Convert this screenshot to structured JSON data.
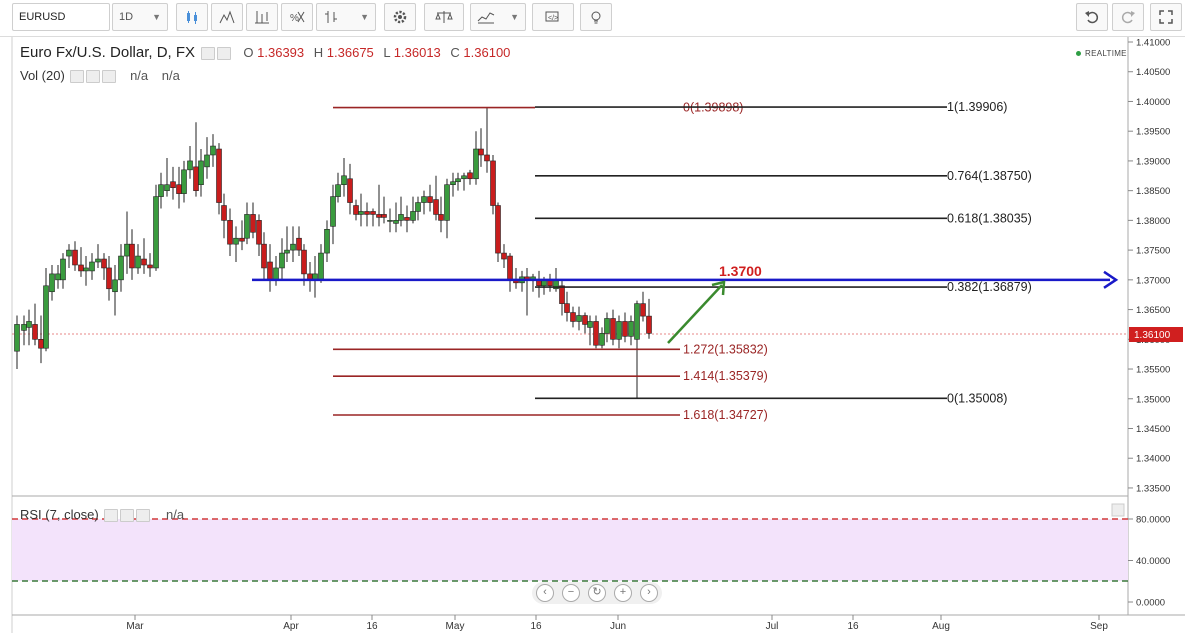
{
  "toolbar": {
    "symbol": "EURUSD",
    "interval": "1D",
    "buttons": [
      "candles-icon",
      "indicators-icon",
      "compare-icon",
      "templates-icon",
      "bar-style-icon",
      "settings-icon",
      "scale-icon",
      "studies-icon",
      "alert-icon",
      "idea-icon",
      "undo-icon",
      "redo-icon",
      "fullscreen-icon"
    ]
  },
  "legend": {
    "title": "Euro Fx/U.S. Dollar, D, FX",
    "open_label": "O",
    "open": "1.36393",
    "high_label": "H",
    "high": "1.36675",
    "low_label": "L",
    "low": "1.36013",
    "close_label": "C",
    "close": "1.36100"
  },
  "volume": {
    "label": "Vol (20)",
    "v1": "n/a",
    "v2": "n/a"
  },
  "realtime": "REALTIME",
  "rsi": {
    "label": "RSI (7, close)",
    "value": "n/a"
  },
  "colors": {
    "up": "#3a9b3e",
    "down": "#c91d1d",
    "blue_line": "#1919c8",
    "arrow": "#3a8a2e",
    "red_fib": "#9a2525",
    "black_fib": "#222222"
  },
  "chart_data": {
    "type": "candlestick",
    "symbol": "EURUSD",
    "y_axis": {
      "ticks": [
        "1.41000",
        "1.40500",
        "1.40000",
        "1.39500",
        "1.39000",
        "1.38500",
        "1.38000",
        "1.37500",
        "1.37000",
        "1.36500",
        "1.36000",
        "1.35500",
        "1.35000",
        "1.34500",
        "1.34000",
        "1.33500"
      ],
      "last_price": "1.36100"
    },
    "x_axis": {
      "ticks": [
        "Mar",
        "Apr",
        "16",
        "May",
        "16",
        "Jun",
        "Jul",
        "16",
        "Aug",
        "Sep"
      ]
    },
    "candles": [
      {
        "x": 17,
        "o": 1.358,
        "h": 1.364,
        "l": 1.355,
        "c": 1.3625
      },
      {
        "x": 24,
        "o": 1.3615,
        "h": 1.364,
        "l": 1.359,
        "c": 1.3625
      },
      {
        "x": 29,
        "o": 1.362,
        "h": 1.365,
        "l": 1.359,
        "c": 1.363
      },
      {
        "x": 35,
        "o": 1.3625,
        "h": 1.366,
        "l": 1.359,
        "c": 1.36
      },
      {
        "x": 41,
        "o": 1.36,
        "h": 1.364,
        "l": 1.356,
        "c": 1.3585
      },
      {
        "x": 46,
        "o": 1.3585,
        "h": 1.372,
        "l": 1.358,
        "c": 1.369
      },
      {
        "x": 52,
        "o": 1.368,
        "h": 1.3725,
        "l": 1.3665,
        "c": 1.371
      },
      {
        "x": 58,
        "o": 1.37,
        "h": 1.3725,
        "l": 1.3685,
        "c": 1.371
      },
      {
        "x": 63,
        "o": 1.37,
        "h": 1.3745,
        "l": 1.3685,
        "c": 1.3735
      },
      {
        "x": 69,
        "o": 1.374,
        "h": 1.376,
        "l": 1.372,
        "c": 1.375
      },
      {
        "x": 75,
        "o": 1.375,
        "h": 1.3765,
        "l": 1.3715,
        "c": 1.3725
      },
      {
        "x": 81,
        "o": 1.3725,
        "h": 1.3755,
        "l": 1.3705,
        "c": 1.3715
      },
      {
        "x": 86,
        "o": 1.3715,
        "h": 1.374,
        "l": 1.369,
        "c": 1.372
      },
      {
        "x": 92,
        "o": 1.3715,
        "h": 1.3745,
        "l": 1.37,
        "c": 1.373
      },
      {
        "x": 98,
        "o": 1.373,
        "h": 1.376,
        "l": 1.372,
        "c": 1.3735
      },
      {
        "x": 104,
        "o": 1.3735,
        "h": 1.3745,
        "l": 1.37,
        "c": 1.372
      },
      {
        "x": 109,
        "o": 1.372,
        "h": 1.374,
        "l": 1.3665,
        "c": 1.3685
      },
      {
        "x": 115,
        "o": 1.368,
        "h": 1.3725,
        "l": 1.364,
        "c": 1.37
      },
      {
        "x": 121,
        "o": 1.37,
        "h": 1.376,
        "l": 1.368,
        "c": 1.374
      },
      {
        "x": 127,
        "o": 1.374,
        "h": 1.3815,
        "l": 1.371,
        "c": 1.376
      },
      {
        "x": 132,
        "o": 1.376,
        "h": 1.3785,
        "l": 1.37,
        "c": 1.372
      },
      {
        "x": 138,
        "o": 1.372,
        "h": 1.376,
        "l": 1.371,
        "c": 1.374
      },
      {
        "x": 144,
        "o": 1.3735,
        "h": 1.377,
        "l": 1.371,
        "c": 1.3725
      },
      {
        "x": 150,
        "o": 1.3725,
        "h": 1.3745,
        "l": 1.3705,
        "c": 1.372
      },
      {
        "x": 156,
        "o": 1.372,
        "h": 1.386,
        "l": 1.3715,
        "c": 1.384
      },
      {
        "x": 161,
        "o": 1.384,
        "h": 1.388,
        "l": 1.382,
        "c": 1.386
      },
      {
        "x": 167,
        "o": 1.385,
        "h": 1.3905,
        "l": 1.384,
        "c": 1.386
      },
      {
        "x": 173,
        "o": 1.3865,
        "h": 1.389,
        "l": 1.3835,
        "c": 1.3855
      },
      {
        "x": 179,
        "o": 1.386,
        "h": 1.389,
        "l": 1.382,
        "c": 1.3845
      },
      {
        "x": 184,
        "o": 1.3845,
        "h": 1.39,
        "l": 1.383,
        "c": 1.3885
      },
      {
        "x": 190,
        "o": 1.3885,
        "h": 1.3925,
        "l": 1.387,
        "c": 1.39
      },
      {
        "x": 196,
        "o": 1.389,
        "h": 1.3965,
        "l": 1.384,
        "c": 1.385
      },
      {
        "x": 201,
        "o": 1.386,
        "h": 1.392,
        "l": 1.384,
        "c": 1.39
      },
      {
        "x": 207,
        "o": 1.389,
        "h": 1.394,
        "l": 1.387,
        "c": 1.391
      },
      {
        "x": 213,
        "o": 1.391,
        "h": 1.3945,
        "l": 1.389,
        "c": 1.3925
      },
      {
        "x": 219,
        "o": 1.392,
        "h": 1.393,
        "l": 1.381,
        "c": 1.383
      },
      {
        "x": 224,
        "o": 1.3825,
        "h": 1.3845,
        "l": 1.377,
        "c": 1.38
      },
      {
        "x": 230,
        "o": 1.38,
        "h": 1.382,
        "l": 1.374,
        "c": 1.376
      },
      {
        "x": 236,
        "o": 1.376,
        "h": 1.379,
        "l": 1.373,
        "c": 1.377
      },
      {
        "x": 242,
        "o": 1.377,
        "h": 1.38,
        "l": 1.375,
        "c": 1.3765
      },
      {
        "x": 247,
        "o": 1.377,
        "h": 1.383,
        "l": 1.376,
        "c": 1.381
      },
      {
        "x": 253,
        "o": 1.381,
        "h": 1.383,
        "l": 1.377,
        "c": 1.378
      },
      {
        "x": 259,
        "o": 1.38,
        "h": 1.381,
        "l": 1.374,
        "c": 1.376
      },
      {
        "x": 264,
        "o": 1.376,
        "h": 1.378,
        "l": 1.37,
        "c": 1.372
      },
      {
        "x": 270,
        "o": 1.373,
        "h": 1.376,
        "l": 1.368,
        "c": 1.37
      },
      {
        "x": 276,
        "o": 1.37,
        "h": 1.374,
        "l": 1.369,
        "c": 1.372
      },
      {
        "x": 282,
        "o": 1.372,
        "h": 1.377,
        "l": 1.37,
        "c": 1.3745
      },
      {
        "x": 287,
        "o": 1.3745,
        "h": 1.379,
        "l": 1.373,
        "c": 1.375
      },
      {
        "x": 293,
        "o": 1.375,
        "h": 1.379,
        "l": 1.373,
        "c": 1.376
      },
      {
        "x": 299,
        "o": 1.377,
        "h": 1.379,
        "l": 1.374,
        "c": 1.375
      },
      {
        "x": 304,
        "o": 1.375,
        "h": 1.376,
        "l": 1.369,
        "c": 1.371
      },
      {
        "x": 310,
        "o": 1.371,
        "h": 1.373,
        "l": 1.368,
        "c": 1.37
      },
      {
        "x": 315,
        "o": 1.37,
        "h": 1.374,
        "l": 1.367,
        "c": 1.371
      },
      {
        "x": 321,
        "o": 1.37,
        "h": 1.376,
        "l": 1.3695,
        "c": 1.3745
      },
      {
        "x": 327,
        "o": 1.3745,
        "h": 1.38,
        "l": 1.373,
        "c": 1.3785
      },
      {
        "x": 333,
        "o": 1.379,
        "h": 1.386,
        "l": 1.376,
        "c": 1.384
      },
      {
        "x": 338,
        "o": 1.384,
        "h": 1.388,
        "l": 1.383,
        "c": 1.386
      },
      {
        "x": 344,
        "o": 1.386,
        "h": 1.3905,
        "l": 1.384,
        "c": 1.3875
      },
      {
        "x": 350,
        "o": 1.387,
        "h": 1.3895,
        "l": 1.381,
        "c": 1.383
      },
      {
        "x": 356,
        "o": 1.3825,
        "h": 1.3835,
        "l": 1.38,
        "c": 1.381
      },
      {
        "x": 361,
        "o": 1.381,
        "h": 1.3845,
        "l": 1.379,
        "c": 1.3815
      },
      {
        "x": 367,
        "o": 1.3815,
        "h": 1.383,
        "l": 1.379,
        "c": 1.381
      },
      {
        "x": 373,
        "o": 1.3815,
        "h": 1.382,
        "l": 1.379,
        "c": 1.381
      },
      {
        "x": 379,
        "o": 1.381,
        "h": 1.386,
        "l": 1.379,
        "c": 1.3805
      },
      {
        "x": 384,
        "o": 1.381,
        "h": 1.384,
        "l": 1.3795,
        "c": 1.3805
      },
      {
        "x": 390,
        "o": 1.38,
        "h": 1.382,
        "l": 1.378,
        "c": 1.38
      },
      {
        "x": 396,
        "o": 1.3795,
        "h": 1.383,
        "l": 1.378,
        "c": 1.38
      },
      {
        "x": 401,
        "o": 1.38,
        "h": 1.384,
        "l": 1.379,
        "c": 1.381
      },
      {
        "x": 407,
        "o": 1.3805,
        "h": 1.3825,
        "l": 1.378,
        "c": 1.38
      },
      {
        "x": 413,
        "o": 1.38,
        "h": 1.384,
        "l": 1.3795,
        "c": 1.3815
      },
      {
        "x": 418,
        "o": 1.3815,
        "h": 1.384,
        "l": 1.38,
        "c": 1.383
      },
      {
        "x": 424,
        "o": 1.383,
        "h": 1.385,
        "l": 1.381,
        "c": 1.384
      },
      {
        "x": 430,
        "o": 1.384,
        "h": 1.386,
        "l": 1.3815,
        "c": 1.383
      },
      {
        "x": 436,
        "o": 1.3835,
        "h": 1.3875,
        "l": 1.38,
        "c": 1.381
      },
      {
        "x": 441,
        "o": 1.381,
        "h": 1.384,
        "l": 1.378,
        "c": 1.38
      },
      {
        "x": 447,
        "o": 1.38,
        "h": 1.387,
        "l": 1.377,
        "c": 1.386
      },
      {
        "x": 453,
        "o": 1.386,
        "h": 1.388,
        "l": 1.384,
        "c": 1.3865
      },
      {
        "x": 458,
        "o": 1.3865,
        "h": 1.388,
        "l": 1.385,
        "c": 1.387
      },
      {
        "x": 464,
        "o": 1.387,
        "h": 1.388,
        "l": 1.385,
        "c": 1.3875
      },
      {
        "x": 470,
        "o": 1.388,
        "h": 1.3885,
        "l": 1.386,
        "c": 1.387
      },
      {
        "x": 476,
        "o": 1.387,
        "h": 1.395,
        "l": 1.386,
        "c": 1.392
      },
      {
        "x": 481,
        "o": 1.392,
        "h": 1.3955,
        "l": 1.389,
        "c": 1.391
      },
      {
        "x": 487,
        "o": 1.391,
        "h": 1.399,
        "l": 1.388,
        "c": 1.39
      },
      {
        "x": 493,
        "o": 1.39,
        "h": 1.391,
        "l": 1.381,
        "c": 1.3825
      },
      {
        "x": 498,
        "o": 1.3825,
        "h": 1.383,
        "l": 1.373,
        "c": 1.3745
      },
      {
        "x": 504,
        "o": 1.3745,
        "h": 1.376,
        "l": 1.372,
        "c": 1.3735
      },
      {
        "x": 510,
        "o": 1.374,
        "h": 1.3745,
        "l": 1.368,
        "c": 1.37
      },
      {
        "x": 516,
        "o": 1.37,
        "h": 1.372,
        "l": 1.3685,
        "c": 1.3695
      },
      {
        "x": 522,
        "o": 1.3695,
        "h": 1.3715,
        "l": 1.368,
        "c": 1.3705
      },
      {
        "x": 527,
        "o": 1.3705,
        "h": 1.372,
        "l": 1.364,
        "c": 1.37
      },
      {
        "x": 533,
        "o": 1.37,
        "h": 1.371,
        "l": 1.368,
        "c": 1.3705
      },
      {
        "x": 539,
        "o": 1.37,
        "h": 1.3715,
        "l": 1.367,
        "c": 1.369
      },
      {
        "x": 544,
        "o": 1.369,
        "h": 1.3705,
        "l": 1.3675,
        "c": 1.37
      },
      {
        "x": 550,
        "o": 1.37,
        "h": 1.371,
        "l": 1.368,
        "c": 1.369
      },
      {
        "x": 556,
        "o": 1.3685,
        "h": 1.372,
        "l": 1.368,
        "c": 1.37
      },
      {
        "x": 562,
        "o": 1.369,
        "h": 1.37,
        "l": 1.364,
        "c": 1.366
      },
      {
        "x": 567,
        "o": 1.366,
        "h": 1.368,
        "l": 1.363,
        "c": 1.3645
      },
      {
        "x": 573,
        "o": 1.3645,
        "h": 1.3655,
        "l": 1.362,
        "c": 1.363
      },
      {
        "x": 579,
        "o": 1.363,
        "h": 1.3655,
        "l": 1.3615,
        "c": 1.364
      },
      {
        "x": 585,
        "o": 1.364,
        "h": 1.3645,
        "l": 1.361,
        "c": 1.3625
      },
      {
        "x": 590,
        "o": 1.362,
        "h": 1.364,
        "l": 1.359,
        "c": 1.363
      },
      {
        "x": 596,
        "o": 1.363,
        "h": 1.364,
        "l": 1.3585,
        "c": 1.359
      },
      {
        "x": 602,
        "o": 1.359,
        "h": 1.362,
        "l": 1.3585,
        "c": 1.361
      },
      {
        "x": 607,
        "o": 1.361,
        "h": 1.3645,
        "l": 1.3595,
        "c": 1.3635
      },
      {
        "x": 613,
        "o": 1.3635,
        "h": 1.365,
        "l": 1.359,
        "c": 1.36
      },
      {
        "x": 619,
        "o": 1.36,
        "h": 1.364,
        "l": 1.3585,
        "c": 1.363
      },
      {
        "x": 625,
        "o": 1.363,
        "h": 1.3645,
        "l": 1.3595,
        "c": 1.3605
      },
      {
        "x": 631,
        "o": 1.3605,
        "h": 1.364,
        "l": 1.359,
        "c": 1.363
      },
      {
        "x": 637,
        "o": 1.36,
        "h": 1.3665,
        "l": 1.35,
        "c": 1.366
      },
      {
        "x": 643,
        "o": 1.366,
        "h": 1.368,
        "l": 1.363,
        "c": 1.3639
      },
      {
        "x": 649,
        "o": 1.3639,
        "h": 1.3668,
        "l": 1.3601,
        "c": 1.361
      }
    ],
    "fibonacci": [
      {
        "label": "0(1.39898)",
        "price": 1.39898,
        "color": "red"
      },
      {
        "label": "1(1.39906)",
        "price": 1.39906,
        "color": "black"
      },
      {
        "label": "0.764(1.38750)",
        "price": 1.3875,
        "color": "black"
      },
      {
        "label": "0.618(1.38035)",
        "price": 1.38035,
        "color": "black"
      },
      {
        "label": "0.382(1.36879)",
        "price": 1.36879,
        "color": "black"
      },
      {
        "label": "1.272(1.35832)",
        "price": 1.35832,
        "color": "red"
      },
      {
        "label": "1.414(1.35379)",
        "price": 1.35379,
        "color": "red"
      },
      {
        "label": "0(1.35008)",
        "price": 1.35008,
        "color": "black"
      },
      {
        "label": "1.618(1.34727)",
        "price": 1.34727,
        "color": "red"
      }
    ],
    "annotations": {
      "target_label": "1.3700",
      "target_price": 1.37
    },
    "rsi_axis": {
      "ticks": [
        "80.0000",
        "40.0000",
        "0.0000"
      ],
      "upper": 80,
      "lower": 20
    }
  }
}
